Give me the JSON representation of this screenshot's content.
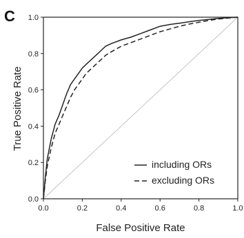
{
  "panel_letter": "C",
  "chart_data": {
    "type": "line",
    "xlabel": "False Positive Rate",
    "ylabel": "True Positive Rate",
    "xlim": [
      0.0,
      1.0
    ],
    "ylim": [
      0.0,
      1.0
    ],
    "x_ticks": [
      "0.0",
      "0.2",
      "0.4",
      "0.6",
      "0.8",
      "1.0"
    ],
    "y_ticks": [
      "0.0",
      "0.2",
      "0.4",
      "0.6",
      "0.8",
      "1.0"
    ],
    "grid": false,
    "legend_position": "bottom-right",
    "series": [
      {
        "name": "including ORs",
        "style": "solid",
        "color": "#222222",
        "x": [
          0.0,
          0.01,
          0.02,
          0.04,
          0.06,
          0.08,
          0.1,
          0.12,
          0.14,
          0.16,
          0.18,
          0.2,
          0.22,
          0.25,
          0.28,
          0.3,
          0.32,
          0.35,
          0.4,
          0.45,
          0.5,
          0.55,
          0.6,
          0.65,
          0.7,
          0.75,
          0.8,
          0.85,
          0.9,
          0.95,
          1.0
        ],
        "y": [
          0.0,
          0.12,
          0.22,
          0.33,
          0.41,
          0.46,
          0.52,
          0.58,
          0.63,
          0.66,
          0.69,
          0.72,
          0.74,
          0.77,
          0.8,
          0.82,
          0.84,
          0.855,
          0.875,
          0.89,
          0.91,
          0.93,
          0.95,
          0.96,
          0.967,
          0.975,
          0.982,
          0.988,
          0.993,
          0.997,
          1.0
        ]
      },
      {
        "name": "excluding ORs",
        "style": "dashed",
        "color": "#222222",
        "x": [
          0.0,
          0.01,
          0.02,
          0.04,
          0.06,
          0.08,
          0.1,
          0.12,
          0.14,
          0.16,
          0.18,
          0.2,
          0.22,
          0.25,
          0.28,
          0.3,
          0.32,
          0.35,
          0.4,
          0.45,
          0.5,
          0.55,
          0.6,
          0.65,
          0.7,
          0.75,
          0.8,
          0.85,
          0.9,
          0.95,
          1.0
        ],
        "y": [
          0.0,
          0.1,
          0.18,
          0.28,
          0.36,
          0.41,
          0.46,
          0.51,
          0.56,
          0.6,
          0.63,
          0.66,
          0.69,
          0.72,
          0.75,
          0.77,
          0.79,
          0.81,
          0.84,
          0.86,
          0.88,
          0.9,
          0.92,
          0.935,
          0.95,
          0.962,
          0.972,
          0.982,
          0.99,
          0.995,
          1.0
        ]
      },
      {
        "name": "",
        "style": "solid",
        "color": "#c4c4c4",
        "x": [
          0.0,
          1.0
        ],
        "y": [
          0.0,
          1.0
        ]
      }
    ]
  }
}
